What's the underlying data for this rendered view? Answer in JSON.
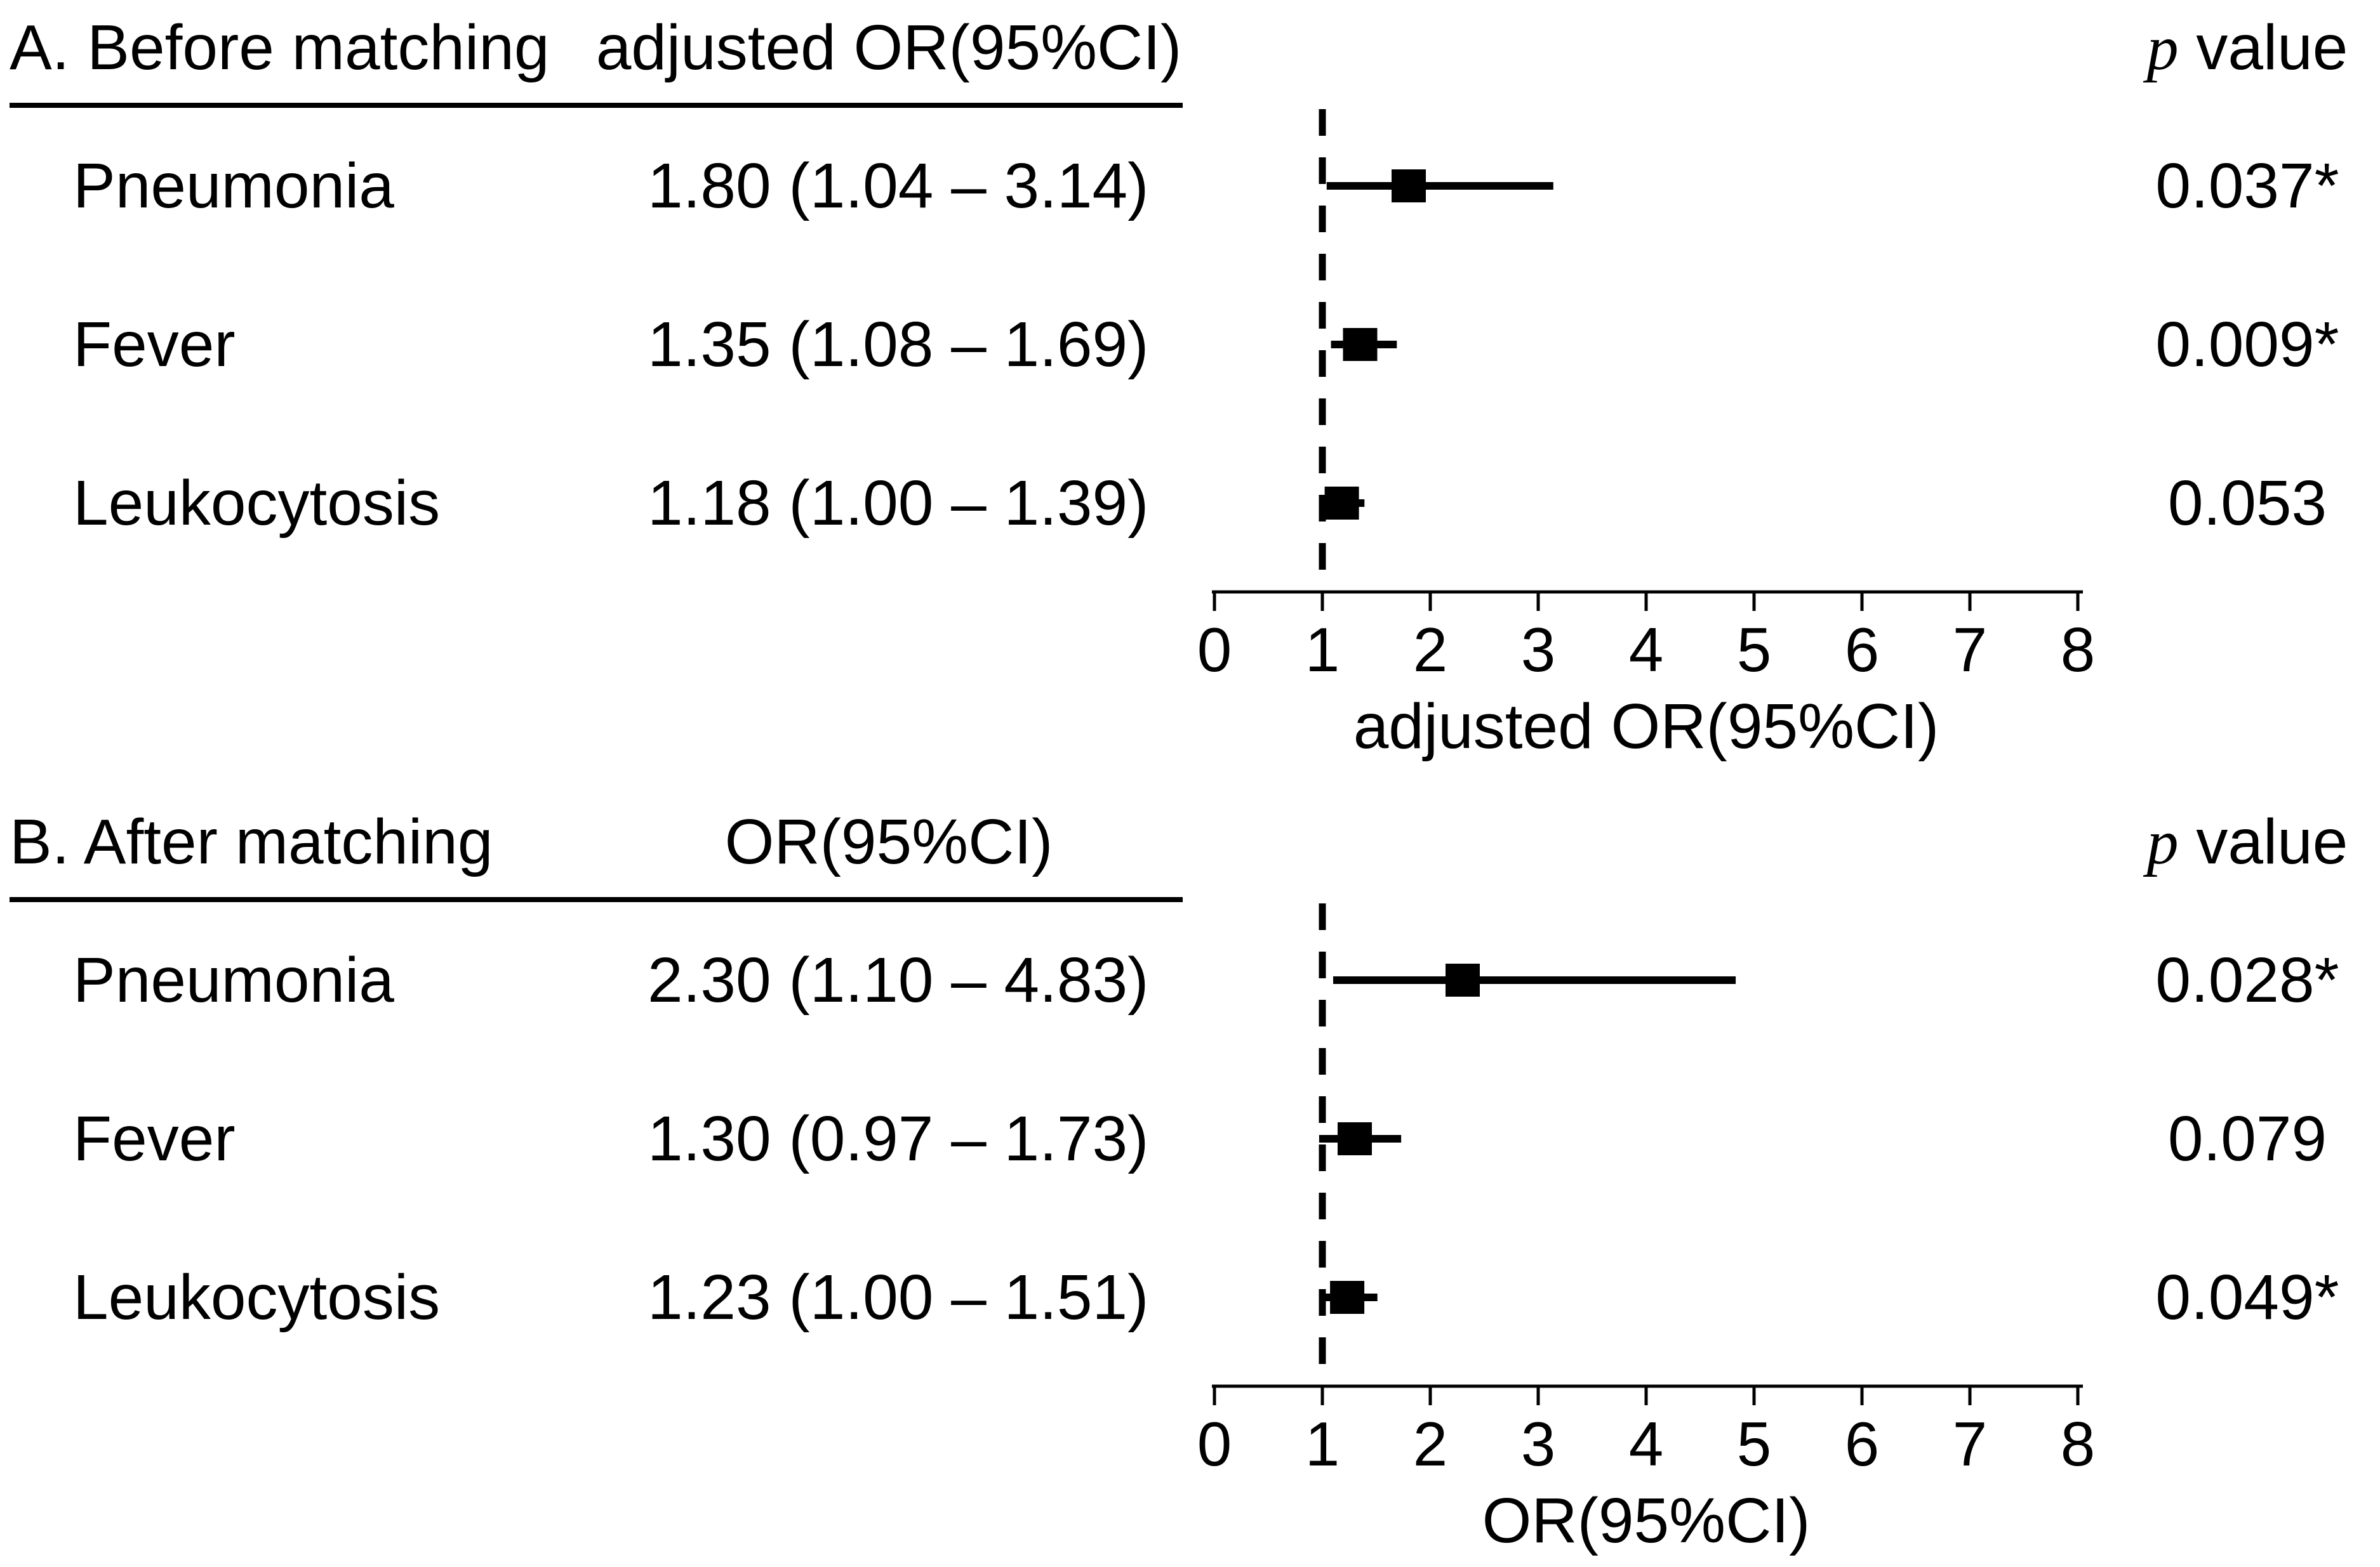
{
  "colors": {
    "ink": "#000000",
    "background": "#ffffff"
  },
  "chart_data": {
    "type": "forest",
    "axis": {
      "min": 0,
      "max": 8,
      "ticks": [
        0,
        1,
        2,
        3,
        4,
        5,
        6,
        7,
        8
      ],
      "reference_line": 1
    },
    "panels": [
      {
        "title": "A. Before matching",
        "column_header": "adjusted OR(95%CI)",
        "pvalue_header": {
          "p": "p",
          "rest": " value"
        },
        "xlabel": "adjusted OR(95%CI)",
        "rows": [
          {
            "label": "Pneumonia",
            "or": 1.8,
            "ci_low": 1.04,
            "ci_high": 3.14,
            "or_text": "1.80 (1.04 – 3.14)",
            "p_text": "0.037*"
          },
          {
            "label": "Fever",
            "or": 1.35,
            "ci_low": 1.08,
            "ci_high": 1.69,
            "or_text": "1.35 (1.08 – 1.69)",
            "p_text": "0.009*"
          },
          {
            "label": "Leukocytosis",
            "or": 1.18,
            "ci_low": 1.0,
            "ci_high": 1.39,
            "or_text": "1.18 (1.00 – 1.39)",
            "p_text": "0.053"
          }
        ]
      },
      {
        "title": "B. After matching",
        "column_header": "OR(95%CI)",
        "pvalue_header": {
          "p": "p",
          "rest": " value"
        },
        "xlabel": "OR(95%CI)",
        "rows": [
          {
            "label": "Pneumonia",
            "or": 2.3,
            "ci_low": 1.1,
            "ci_high": 4.83,
            "or_text": "2.30 (1.10 – 4.83)",
            "p_text": "0.028*"
          },
          {
            "label": "Fever",
            "or": 1.3,
            "ci_low": 0.97,
            "ci_high": 1.73,
            "or_text": "1.30 (0.97 – 1.73)",
            "p_text": "0.079"
          },
          {
            "label": "Leukocytosis",
            "or": 1.23,
            "ci_low": 1.0,
            "ci_high": 1.51,
            "or_text": "1.23 (1.00 – 1.51)",
            "p_text": "0.049*"
          }
        ]
      }
    ]
  }
}
